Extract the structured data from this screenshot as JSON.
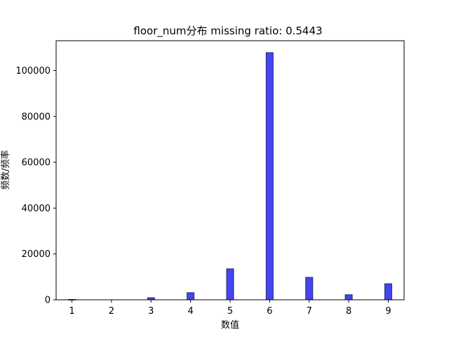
{
  "chart_data": {
    "type": "bar",
    "title": "floor_num分布  missing ratio: 0.5443",
    "xlabel": "数值",
    "ylabel": "频数/频率",
    "bar_color": "#4444f2",
    "bar_edge_color": "#2a2a6a",
    "xlim": [
      0.6,
      9.4
    ],
    "ylim": [
      0,
      113000
    ],
    "xticks": [
      "1",
      "2",
      "3",
      "4",
      "5",
      "6",
      "7",
      "8",
      "9"
    ],
    "yticks": [
      "0",
      "20000",
      "40000",
      "60000",
      "80000",
      "100000"
    ],
    "grid": false,
    "x": [
      1,
      2,
      3,
      4,
      5,
      6,
      7,
      8,
      9
    ],
    "values": [
      150,
      0,
      900,
      3100,
      13500,
      107800,
      9800,
      2200,
      7000
    ]
  }
}
